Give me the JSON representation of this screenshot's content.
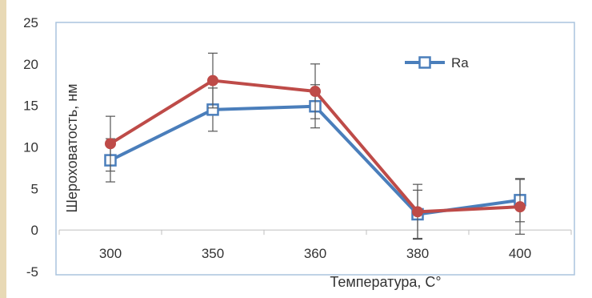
{
  "chart_data": {
    "type": "line",
    "categories": [
      "300",
      "350",
      "360",
      "380",
      "400"
    ],
    "series": [
      {
        "name": "Ra",
        "color": "#4a7ebb",
        "marker": "square-hollow",
        "values": [
          8.4,
          14.5,
          14.9,
          1.9,
          3.6
        ],
        "error": [
          2.6,
          2.6,
          2.6,
          2.9,
          2.6
        ]
      },
      {
        "color": "#be4b48",
        "marker": "circle",
        "values": [
          10.4,
          18.0,
          16.7,
          2.2,
          2.8
        ],
        "error": [
          3.3,
          3.3,
          3.3,
          3.3,
          3.3
        ]
      }
    ],
    "title": "",
    "xlabel": "Температура, С°",
    "ylabel": "Шероховатость, нм",
    "ylim": [
      -5,
      25
    ],
    "yticks": [
      "25",
      "20",
      "15",
      "10",
      "5",
      "0",
      "-5"
    ],
    "grid": false,
    "legend_position": "top-right"
  }
}
